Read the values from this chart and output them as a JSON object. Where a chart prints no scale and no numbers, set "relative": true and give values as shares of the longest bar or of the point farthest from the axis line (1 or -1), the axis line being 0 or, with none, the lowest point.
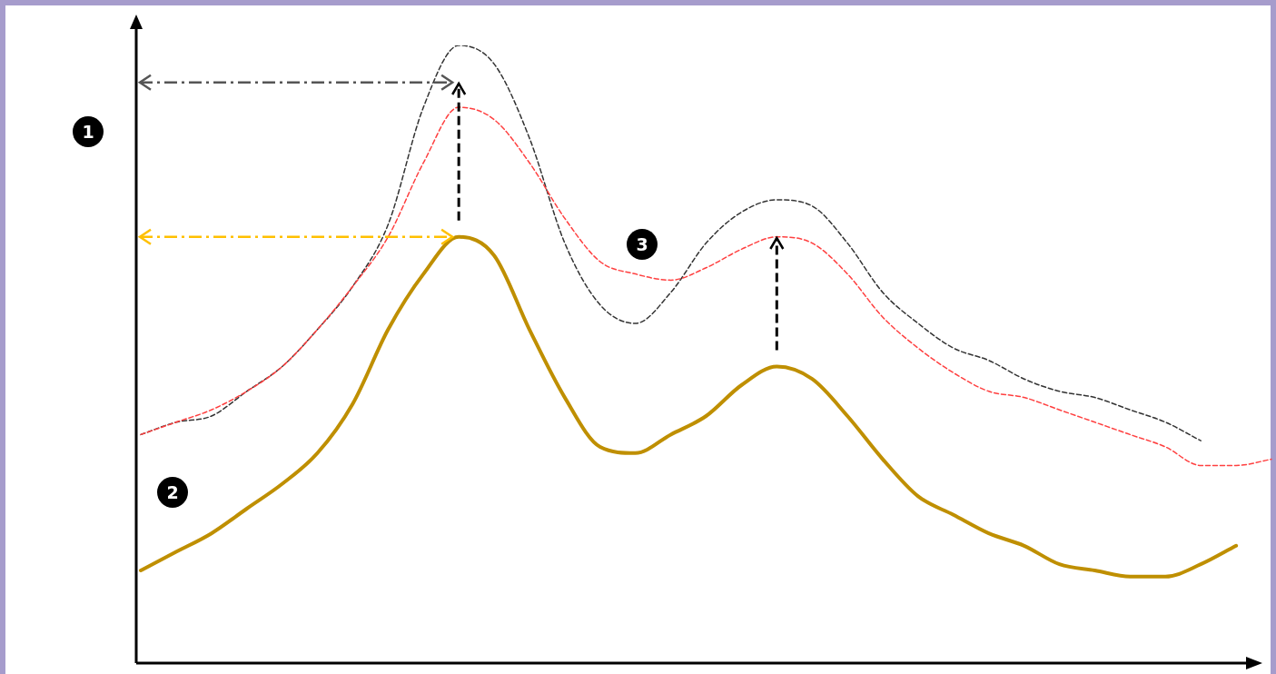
{
  "chart_data": {
    "type": "line",
    "relative": true,
    "marker": "none",
    "legend": false,
    "tick_labels": false,
    "categories": [
      null,
      null,
      null,
      null,
      null,
      null,
      null,
      null,
      null,
      null,
      null,
      null,
      null,
      null,
      null,
      null,
      null,
      null,
      null,
      null,
      null,
      null,
      null,
      null,
      null,
      null,
      null,
      null,
      null,
      null,
      null,
      null,
      null
    ],
    "series": [
      {
        "color": "#bf8f00",
        "line_style": "solid",
        "values": [
          0.15,
          0.18,
          0.21,
          0.25,
          0.29,
          0.34,
          0.42,
          0.54,
          0.63,
          0.69,
          0.66,
          0.54,
          0.43,
          0.35,
          0.34,
          0.37,
          0.4,
          0.45,
          0.48,
          0.46,
          0.4,
          0.33,
          0.27,
          0.24,
          0.21,
          0.19,
          0.16,
          0.15,
          0.14,
          0.14,
          0.16,
          0.19,
          null
        ]
      },
      {
        "color": "#ff4040",
        "line_style": "dashed",
        "values": [
          0.37,
          0.39,
          0.41,
          0.44,
          0.48,
          0.54,
          0.61,
          0.69,
          0.81,
          0.9,
          0.88,
          0.81,
          0.72,
          0.65,
          0.63,
          0.62,
          0.64,
          0.67,
          0.69,
          0.68,
          0.63,
          0.56,
          0.51,
          0.47,
          0.44,
          0.43,
          0.41,
          0.39,
          0.37,
          0.35,
          0.32,
          0.32,
          0.33
        ]
      },
      {
        "color": "#333333",
        "line_style": "dashed",
        "values": [
          0.37,
          0.39,
          0.4,
          0.44,
          0.48,
          0.54,
          0.61,
          0.71,
          0.9,
          1,
          0.97,
          0.85,
          0.68,
          0.58,
          0.55,
          0.6,
          0.68,
          0.73,
          0.75,
          0.74,
          0.68,
          0.6,
          0.55,
          0.51,
          0.49,
          0.46,
          0.44,
          0.43,
          0.41,
          0.39,
          0.36,
          null,
          null
        ]
      }
    ],
    "annotations": [
      "1",
      "2",
      "3"
    ]
  }
}
